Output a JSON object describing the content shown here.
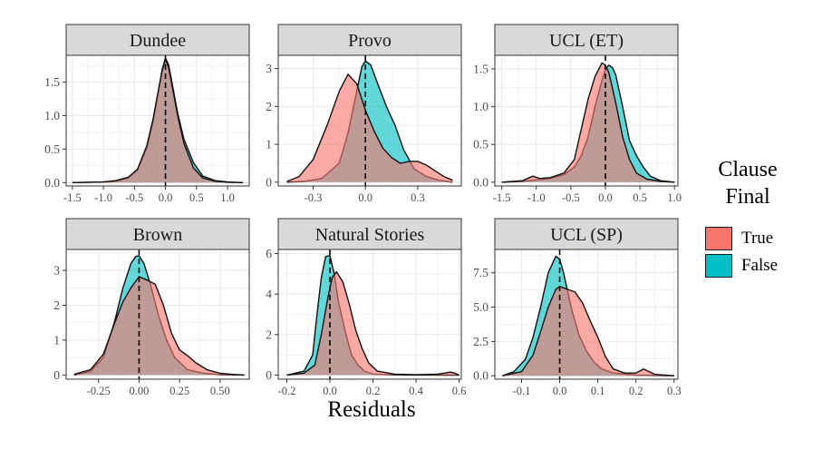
{
  "chart_data": {
    "type": "area",
    "xlabel": "Residuals",
    "ylabel": "",
    "legend": {
      "title": [
        "Clause",
        "Final"
      ],
      "placement": "right",
      "entries": [
        {
          "label": "True",
          "color": "#F8766D"
        },
        {
          "label": "False",
          "color": "#00BFC4"
        }
      ]
    },
    "grid": true,
    "panels": [
      {
        "title": "Dundee",
        "xlim": [
          -1.6,
          1.35
        ],
        "ylim": [
          -0.05,
          1.9
        ],
        "xticks": [
          {
            "v": -1.5,
            "l": "-1.5"
          },
          {
            "v": -1.0,
            "l": "-1.0"
          },
          {
            "v": -0.5,
            "l": "-0.5"
          },
          {
            "v": 0.0,
            "l": "0.0"
          },
          {
            "v": 0.5,
            "l": "0.5"
          },
          {
            "v": 1.0,
            "l": "1.0"
          }
        ],
        "yticks": [
          {
            "v": 0.0,
            "l": "0.0"
          },
          {
            "v": 0.5,
            "l": "0.5"
          },
          {
            "v": 1.0,
            "l": "1.0"
          },
          {
            "v": 1.5,
            "l": "1.5"
          }
        ],
        "series": [
          {
            "legend": "True",
            "x": [
              -1.5,
              -1.0,
              -0.8,
              -0.6,
              -0.45,
              -0.3,
              -0.2,
              -0.1,
              -0.05,
              0.0,
              0.05,
              0.1,
              0.2,
              0.3,
              0.45,
              0.6,
              0.8,
              1.0,
              1.25
            ],
            "y": [
              0.0,
              0.01,
              0.03,
              0.08,
              0.2,
              0.55,
              0.95,
              1.45,
              1.68,
              1.84,
              1.72,
              1.48,
              0.98,
              0.58,
              0.22,
              0.07,
              0.02,
              0.005,
              0.0
            ]
          },
          {
            "legend": "False",
            "x": [
              -1.5,
              -1.0,
              -0.8,
              -0.6,
              -0.45,
              -0.3,
              -0.2,
              -0.1,
              -0.05,
              0.0,
              0.05,
              0.1,
              0.2,
              0.3,
              0.45,
              0.6,
              0.8,
              1.0,
              1.25
            ],
            "y": [
              0.0,
              0.01,
              0.02,
              0.07,
              0.19,
              0.52,
              0.92,
              1.43,
              1.7,
              1.86,
              1.76,
              1.52,
              1.02,
              0.64,
              0.3,
              0.1,
              0.03,
              0.01,
              0.0
            ]
          }
        ]
      },
      {
        "title": "Provo",
        "xlim": [
          -0.5,
          0.55
        ],
        "ylim": [
          -0.1,
          3.35
        ],
        "xticks": [
          {
            "v": -0.3,
            "l": "-0.3"
          },
          {
            "v": 0.0,
            "l": "0.0"
          },
          {
            "v": 0.3,
            "l": "0.3"
          }
        ],
        "yticks": [
          {
            "v": 0,
            "l": "0"
          },
          {
            "v": 1,
            "l": "1"
          },
          {
            "v": 2,
            "l": "2"
          },
          {
            "v": 3,
            "l": "3"
          }
        ],
        "series": [
          {
            "legend": "True",
            "x": [
              -0.45,
              -0.38,
              -0.3,
              -0.22,
              -0.15,
              -0.1,
              -0.05,
              0.0,
              0.05,
              0.1,
              0.15,
              0.2,
              0.25,
              0.3,
              0.35,
              0.4,
              0.45,
              0.5
            ],
            "y": [
              0.02,
              0.15,
              0.6,
              1.5,
              2.4,
              2.85,
              2.6,
              1.9,
              1.35,
              0.9,
              0.65,
              0.5,
              0.55,
              0.55,
              0.45,
              0.3,
              0.15,
              0.05
            ]
          },
          {
            "legend": "False",
            "x": [
              -0.45,
              -0.35,
              -0.25,
              -0.15,
              -0.1,
              -0.05,
              -0.02,
              0.0,
              0.03,
              0.07,
              0.12,
              0.17,
              0.22,
              0.28,
              0.35,
              0.42,
              0.5
            ],
            "y": [
              0.0,
              0.02,
              0.1,
              0.5,
              1.3,
              2.4,
              3.05,
              3.2,
              3.1,
              2.6,
              2.0,
              1.5,
              0.85,
              0.35,
              0.15,
              0.05,
              0.0
            ]
          }
        ]
      },
      {
        "title": "UCL (ET)",
        "xlim": [
          -1.6,
          1.05
        ],
        "ylim": [
          -0.05,
          1.68
        ],
        "xticks": [
          {
            "v": -1.5,
            "l": "-1.5"
          },
          {
            "v": -1.0,
            "l": "-1.0"
          },
          {
            "v": -0.5,
            "l": "-0.5"
          },
          {
            "v": 0.0,
            "l": "0.0"
          },
          {
            "v": 0.5,
            "l": "0.5"
          },
          {
            "v": 1.0,
            "l": "1.0"
          }
        ],
        "yticks": [
          {
            "v": 0.0,
            "l": "0.0"
          },
          {
            "v": 0.5,
            "l": "0.5"
          },
          {
            "v": 1.0,
            "l": "1.0"
          },
          {
            "v": 1.5,
            "l": "1.5"
          }
        ],
        "series": [
          {
            "legend": "True",
            "x": [
              -1.5,
              -1.2,
              -1.05,
              -0.95,
              -0.8,
              -0.6,
              -0.45,
              -0.35,
              -0.25,
              -0.15,
              -0.05,
              0.0,
              0.05,
              0.15,
              0.25,
              0.35,
              0.45,
              0.6,
              0.8,
              1.0
            ],
            "y": [
              0.0,
              0.02,
              0.08,
              0.05,
              0.06,
              0.12,
              0.3,
              0.7,
              1.1,
              1.4,
              1.58,
              1.55,
              1.45,
              1.05,
              0.6,
              0.3,
              0.12,
              0.04,
              0.01,
              0.0
            ]
          },
          {
            "legend": "False",
            "x": [
              -1.5,
              -1.2,
              -1.0,
              -0.8,
              -0.6,
              -0.45,
              -0.35,
              -0.25,
              -0.15,
              -0.05,
              0.0,
              0.05,
              0.1,
              0.15,
              0.25,
              0.35,
              0.45,
              0.55,
              0.65,
              0.8,
              1.0
            ],
            "y": [
              0.0,
              0.01,
              0.03,
              0.05,
              0.1,
              0.2,
              0.35,
              0.6,
              1.0,
              1.35,
              1.5,
              1.55,
              1.52,
              1.42,
              1.0,
              0.55,
              0.35,
              0.2,
              0.08,
              0.02,
              0.0
            ]
          }
        ]
      },
      {
        "title": "Brown",
        "xlim": [
          -0.45,
          0.68
        ],
        "ylim": [
          -0.12,
          3.6
        ],
        "xticks": [
          {
            "v": -0.25,
            "l": "-0.25"
          },
          {
            "v": 0.0,
            "l": "0.00"
          },
          {
            "v": 0.25,
            "l": "0.25"
          },
          {
            "v": 0.5,
            "l": "0.50"
          }
        ],
        "yticks": [
          {
            "v": 0,
            "l": "0"
          },
          {
            "v": 1,
            "l": "1"
          },
          {
            "v": 2,
            "l": "2"
          },
          {
            "v": 3,
            "l": "3"
          }
        ],
        "series": [
          {
            "legend": "True",
            "x": [
              -0.4,
              -0.3,
              -0.22,
              -0.15,
              -0.1,
              -0.05,
              0.0,
              0.05,
              0.1,
              0.15,
              0.2,
              0.25,
              0.3,
              0.35,
              0.42,
              0.5,
              0.6,
              0.65
            ],
            "y": [
              0.02,
              0.15,
              0.6,
              1.5,
              2.1,
              2.5,
              2.82,
              2.72,
              2.6,
              2.0,
              1.2,
              0.72,
              0.55,
              0.35,
              0.15,
              0.05,
              0.01,
              0.0
            ]
          },
          {
            "legend": "False",
            "x": [
              -0.4,
              -0.3,
              -0.22,
              -0.15,
              -0.1,
              -0.05,
              -0.02,
              0.0,
              0.03,
              0.07,
              0.12,
              0.17,
              0.22,
              0.3,
              0.4,
              0.5,
              0.65
            ],
            "y": [
              0.0,
              0.1,
              0.5,
              1.55,
              2.5,
              3.2,
              3.4,
              3.42,
              3.2,
              2.6,
              1.7,
              1.0,
              0.5,
              0.15,
              0.05,
              0.01,
              0.0
            ]
          }
        ]
      },
      {
        "title": "Natural Stories",
        "xlim": [
          -0.24,
          0.61
        ],
        "ylim": [
          -0.2,
          6.2
        ],
        "xticks": [
          {
            "v": -0.2,
            "l": "-0.2"
          },
          {
            "v": 0.0,
            "l": "0.0"
          },
          {
            "v": 0.2,
            "l": "0.2"
          },
          {
            "v": 0.4,
            "l": "0.4"
          },
          {
            "v": 0.6,
            "l": "0.6"
          }
        ],
        "yticks": [
          {
            "v": 0,
            "l": "0"
          },
          {
            "v": 2,
            "l": "2"
          },
          {
            "v": 4,
            "l": "4"
          },
          {
            "v": 6,
            "l": "6"
          }
        ],
        "series": [
          {
            "legend": "True",
            "x": [
              -0.2,
              -0.12,
              -0.07,
              -0.04,
              -0.01,
              0.01,
              0.03,
              0.06,
              0.09,
              0.12,
              0.15,
              0.18,
              0.22,
              0.3,
              0.4,
              0.5,
              0.56,
              0.58,
              0.6
            ],
            "y": [
              0.0,
              0.1,
              0.5,
              2.0,
              3.8,
              4.8,
              5.1,
              4.6,
              3.5,
              2.2,
              1.3,
              0.6,
              0.2,
              0.05,
              0.02,
              0.05,
              0.15,
              0.1,
              0.0
            ]
          },
          {
            "legend": "False",
            "x": [
              -0.2,
              -0.12,
              -0.08,
              -0.06,
              -0.04,
              -0.02,
              0.0,
              0.02,
              0.04,
              0.07,
              0.1,
              0.13,
              0.16,
              0.2,
              0.3,
              0.6
            ],
            "y": [
              0.0,
              0.2,
              1.0,
              3.0,
              4.8,
              5.85,
              5.9,
              5.0,
              3.6,
              2.2,
              1.0,
              0.5,
              0.2,
              0.05,
              0.01,
              0.0
            ]
          }
        ]
      },
      {
        "title": "UCL (SP)",
        "xlim": [
          -0.17,
          0.31
        ],
        "ylim": [
          -0.25,
          9.2
        ],
        "xticks": [
          {
            "v": -0.1,
            "l": "-0.1"
          },
          {
            "v": 0.0,
            "l": "0.0"
          },
          {
            "v": 0.1,
            "l": "0.1"
          },
          {
            "v": 0.2,
            "l": "0.2"
          },
          {
            "v": 0.3,
            "l": "0.3"
          }
        ],
        "yticks": [
          {
            "v": 0.0,
            "l": "0.0"
          },
          {
            "v": 2.5,
            "l": "2.5"
          },
          {
            "v": 5.0,
            "l": "5.0"
          },
          {
            "v": 7.5,
            "l": "7.5"
          }
        ],
        "series": [
          {
            "legend": "True",
            "x": [
              -0.15,
              -0.1,
              -0.07,
              -0.05,
              -0.03,
              -0.01,
              0.0,
              0.02,
              0.04,
              0.06,
              0.08,
              0.1,
              0.12,
              0.14,
              0.17,
              0.2,
              0.22,
              0.25,
              0.3
            ],
            "y": [
              0.0,
              0.3,
              1.5,
              3.2,
              5.0,
              6.3,
              6.5,
              6.3,
              6.1,
              5.3,
              4.0,
              2.8,
              1.4,
              0.5,
              0.2,
              0.2,
              0.5,
              0.1,
              0.0
            ]
          },
          {
            "legend": "False",
            "x": [
              -0.15,
              -0.12,
              -0.09,
              -0.07,
              -0.05,
              -0.03,
              -0.01,
              0.0,
              0.01,
              0.03,
              0.05,
              0.07,
              0.09,
              0.11,
              0.14,
              0.2,
              0.3
            ],
            "y": [
              0.0,
              0.3,
              1.2,
              2.8,
              5.0,
              7.5,
              8.7,
              8.5,
              7.5,
              5.0,
              3.0,
              1.8,
              1.0,
              0.5,
              0.2,
              0.05,
              0.0
            ]
          }
        ]
      }
    ]
  }
}
